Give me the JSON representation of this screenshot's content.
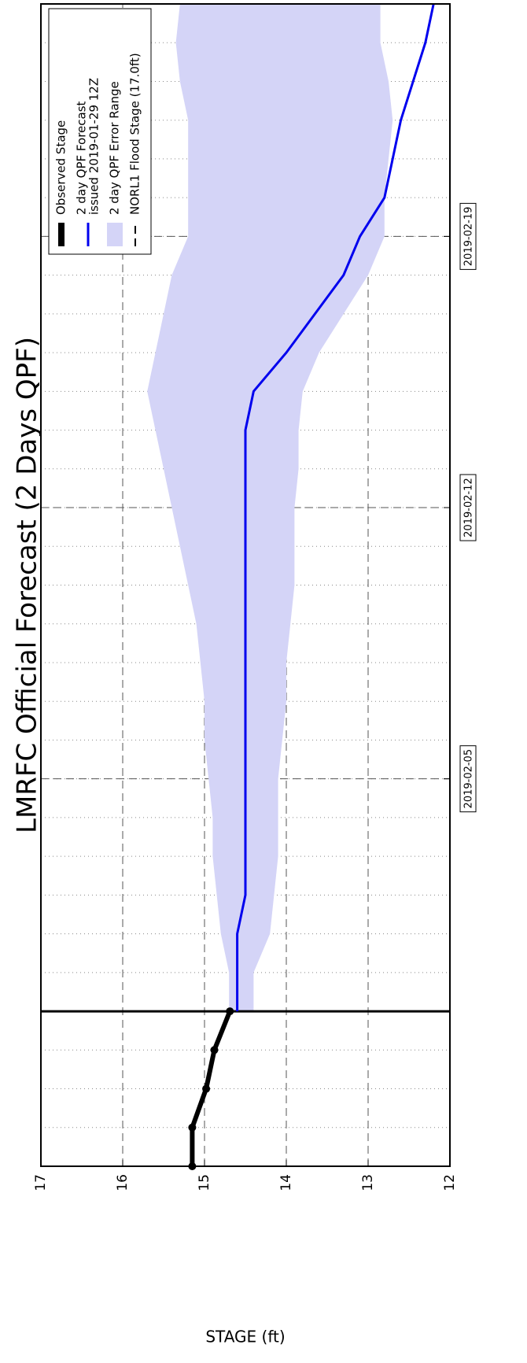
{
  "chart_data": {
    "type": "line",
    "title": "LMRFC Official Forecast (2 Days QPF)",
    "ylabel": "STAGE (ft)",
    "xlim": [
      "2019-01-26",
      "2019-02-25"
    ],
    "xticks": [
      "2019-02-05",
      "2019-02-12",
      "2019-02-19"
    ],
    "ylim": [
      12,
      17
    ],
    "yticks": [
      12,
      13,
      14,
      15,
      16,
      17
    ],
    "grid": true,
    "legend": "upper right",
    "series": [
      {
        "name": [
          "Observed Stage"
        ],
        "color": "#000000",
        "x": [
          "2019-01-26",
          "2019-01-27",
          "2019-01-28",
          "2019-01-29",
          "2019-01-30"
        ],
        "values": [
          15.15,
          15.15,
          14.98,
          14.88,
          14.69
        ]
      },
      {
        "name": [
          "2 day QPF Forecast",
          "issued 2019-01-29 12Z"
        ],
        "color": "#0000ee",
        "x": [
          "2019-01-30",
          "2019-01-31",
          "2019-02-01",
          "2019-02-02",
          "2019-02-03",
          "2019-02-04",
          "2019-02-05",
          "2019-02-06",
          "2019-02-07",
          "2019-02-08",
          "2019-02-09",
          "2019-02-10",
          "2019-02-11",
          "2019-02-12",
          "2019-02-13",
          "2019-02-14",
          "2019-02-15",
          "2019-02-16",
          "2019-02-17",
          "2019-02-18",
          "2019-02-19",
          "2019-02-20",
          "2019-02-21",
          "2019-02-22",
          "2019-02-23",
          "2019-02-24",
          "2019-02-25"
        ],
        "values": [
          14.6,
          14.6,
          14.6,
          14.5,
          14.5,
          14.5,
          14.5,
          14.5,
          14.5,
          14.5,
          14.5,
          14.5,
          14.5,
          14.5,
          14.5,
          14.5,
          14.4,
          14.0,
          13.65,
          13.3,
          13.1,
          12.8,
          12.7,
          12.6,
          12.45,
          12.3,
          12.2
        ]
      }
    ],
    "band": {
      "name": "2 day QPF Error Range",
      "color": "#d4d4f7",
      "x": [
        "2019-01-30",
        "2019-01-31",
        "2019-02-01",
        "2019-02-02",
        "2019-02-03",
        "2019-02-04",
        "2019-02-05",
        "2019-02-06",
        "2019-02-07",
        "2019-02-08",
        "2019-02-09",
        "2019-02-10",
        "2019-02-11",
        "2019-02-12",
        "2019-02-13",
        "2019-02-14",
        "2019-02-15",
        "2019-02-16",
        "2019-02-17",
        "2019-02-18",
        "2019-02-19",
        "2019-02-20",
        "2019-02-21",
        "2019-02-22",
        "2019-02-23",
        "2019-02-24",
        "2019-02-25"
      ],
      "upper": [
        14.7,
        14.7,
        14.8,
        14.85,
        14.9,
        14.9,
        14.95,
        15.0,
        15.0,
        15.05,
        15.1,
        15.2,
        15.3,
        15.4,
        15.5,
        15.6,
        15.7,
        15.6,
        15.5,
        15.4,
        15.2,
        15.2,
        15.2,
        15.2,
        15.3,
        15.35,
        15.3
      ],
      "lower": [
        14.4,
        14.4,
        14.2,
        14.15,
        14.1,
        14.1,
        14.1,
        14.05,
        14.0,
        14.0,
        13.95,
        13.9,
        13.9,
        13.9,
        13.85,
        13.85,
        13.8,
        13.6,
        13.3,
        13.0,
        12.8,
        12.8,
        12.75,
        12.7,
        12.75,
        12.85,
        12.85
      ]
    },
    "flood_stage": {
      "name": "NORL1 Flood Stage (17.0ft)",
      "value": 17,
      "color": "#000000"
    }
  }
}
